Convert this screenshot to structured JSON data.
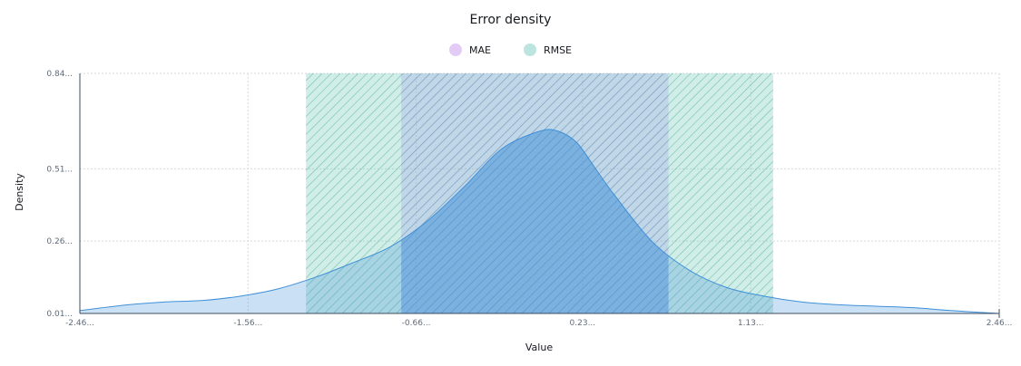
{
  "chart_data": {
    "type": "area",
    "title": "Error density",
    "xlabel": "Value",
    "ylabel": "Density",
    "legend": [
      {
        "name": "MAE",
        "color": "#e2ccf6"
      },
      {
        "name": "RMSE",
        "color": "#bde5df"
      }
    ],
    "x_ticks": [
      "-2.46...",
      "-1.56...",
      "-0.66...",
      "0.23...",
      "1.13...",
      "2.46..."
    ],
    "x_tick_values": [
      -2.46,
      -1.56,
      -0.66,
      0.23,
      1.13,
      2.46
    ],
    "y_ticks": [
      "0.01...",
      "0.26...",
      "0.51...",
      "0.84..."
    ],
    "y_tick_values": [
      0.01,
      0.26,
      0.51,
      0.84
    ],
    "xlim": [
      -2.46,
      2.46
    ],
    "ylim": [
      0.01,
      0.84
    ],
    "grid": true,
    "legend_position": "top",
    "bands": [
      {
        "name": "RMSE",
        "x0": -1.25,
        "x1": 1.25,
        "color": "#6ccab5",
        "hatched": true
      },
      {
        "name": "MAE",
        "x0": -0.74,
        "x1": 0.69,
        "color": "#9aa8e2",
        "hatched": true
      }
    ],
    "series": [
      {
        "x": [
          -2.46,
          -2.2,
          -2.0,
          -1.8,
          -1.6,
          -1.4,
          -1.2,
          -1.0,
          -0.8,
          -0.6,
          -0.4,
          -0.2,
          0.0,
          0.1,
          0.2,
          0.3,
          0.4,
          0.6,
          0.8,
          1.0,
          1.2,
          1.4,
          1.6,
          1.8,
          2.0,
          2.2,
          2.46
        ],
        "y": [
          0.02,
          0.04,
          0.05,
          0.055,
          0.07,
          0.095,
          0.135,
          0.185,
          0.24,
          0.33,
          0.45,
          0.58,
          0.64,
          0.64,
          0.6,
          0.51,
          0.42,
          0.26,
          0.16,
          0.1,
          0.07,
          0.05,
          0.04,
          0.035,
          0.03,
          0.02,
          0.01
        ],
        "color": "#3f90d9"
      }
    ]
  }
}
